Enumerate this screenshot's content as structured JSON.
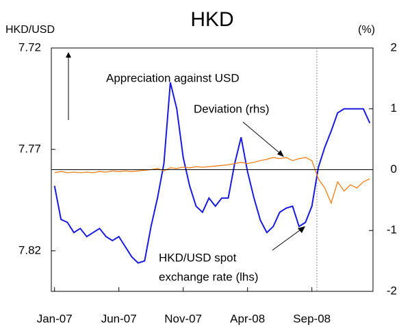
{
  "chart_data": {
    "type": "line",
    "title": "HKD",
    "y_label": "HKD/USD",
    "y2_label": "(%)",
    "annotations": [
      "Appreciation against USD",
      "Deviation (rhs)",
      "HKD/USD spot",
      "exchange rate (lhs)"
    ],
    "categories": [
      "Jan-07",
      null,
      null,
      null,
      null,
      null,
      null,
      null,
      null,
      null,
      "Jun-07",
      null,
      null,
      null,
      null,
      null,
      null,
      null,
      null,
      null,
      "Nov-07",
      null,
      null,
      null,
      null,
      null,
      null,
      null,
      null,
      null,
      "Apr-08",
      null,
      null,
      null,
      null,
      null,
      null,
      null,
      null,
      null,
      "Sep-08",
      null,
      null,
      null,
      null,
      null,
      null,
      null,
      null,
      null
    ],
    "ylim": [
      7.72,
      7.84
    ],
    "y_inverted": true,
    "yticks": [
      7.72,
      7.77,
      7.82
    ],
    "y2lim": [
      -2,
      2
    ],
    "y2ticks": [
      2,
      1,
      0,
      -1,
      -2
    ],
    "series": [
      {
        "name": "HKD/USD spot exchange rate (lhs)",
        "color": "#1a1adc",
        "values": [
          7.788,
          7.8045,
          7.806,
          7.811,
          7.809,
          7.813,
          7.811,
          7.809,
          7.813,
          7.815,
          7.813,
          7.818,
          7.823,
          7.826,
          7.825,
          7.808,
          7.794,
          7.777,
          7.737,
          7.75,
          7.774,
          7.788,
          7.798,
          7.801,
          7.794,
          7.798,
          7.794,
          7.794,
          7.777,
          7.764,
          7.781,
          7.794,
          7.805,
          7.811,
          7.808,
          7.801,
          7.799,
          7.798,
          7.808,
          7.806,
          7.798,
          7.779,
          7.769,
          7.761,
          7.752,
          7.75,
          7.75,
          7.75,
          7.75,
          7.757
        ]
      },
      {
        "name": "Deviation (rhs)",
        "color": "#f07f1a",
        "axis": "y2",
        "values": [
          -0.05,
          -0.03,
          -0.05,
          -0.04,
          -0.05,
          -0.04,
          -0.05,
          -0.03,
          -0.04,
          -0.02,
          -0.03,
          -0.02,
          -0.03,
          -0.02,
          -0.01,
          0,
          0.02,
          -0.02,
          0.03,
          0.02,
          0.04,
          0.03,
          0.05,
          0.04,
          0.05,
          0.06,
          0.07,
          0.08,
          0.1,
          0.12,
          0.1,
          0.12,
          0.15,
          0.17,
          0.2,
          0.18,
          0.2,
          0.15,
          0.18,
          0.2,
          0.15,
          -0.15,
          -0.3,
          -0.55,
          -0.2,
          -0.35,
          -0.25,
          -0.3,
          -0.2,
          -0.15
        ]
      }
    ]
  }
}
